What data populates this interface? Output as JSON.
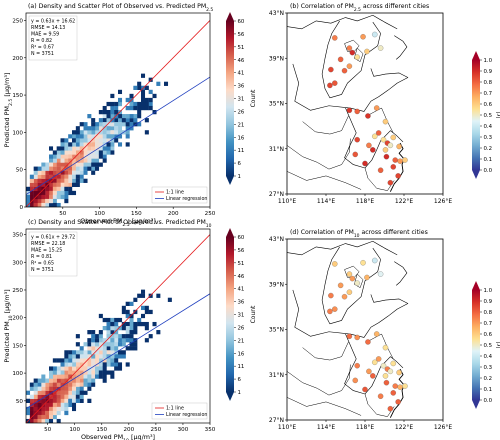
{
  "colors": {
    "one_to_one": "#e41a1c",
    "regression": "#1f3fbf",
    "density_scale": [
      "#08306b",
      "#2166ac",
      "#4393c3",
      "#92c5de",
      "#d1e5f0",
      "#fddbc7",
      "#f4a582",
      "#d6604d",
      "#b2182b",
      "#67001f"
    ],
    "corr_scale": [
      "#313695",
      "#4575b4",
      "#74add1",
      "#abd9e9",
      "#e0f3f8",
      "#fee090",
      "#fdae61",
      "#f46d43",
      "#d73027",
      "#a50026"
    ]
  },
  "chart_data": [
    {
      "type": "scatter",
      "panel": "a",
      "title": "(a) Density and Scatter Plot of Observed vs. Predicted PM",
      "title_sub": "2.5",
      "xlabel": "Observed PM",
      "xlabel_sub": "2.5",
      "xlabel_unit": " [μg/m³]",
      "ylabel": "Predicted PM",
      "ylabel_sub": "2.5",
      "ylabel_unit": " [μg/m³]",
      "xlim": [
        0,
        250
      ],
      "ylim": [
        0,
        260
      ],
      "xticks": [
        50,
        100,
        150,
        200,
        250
      ],
      "yticks": [
        0,
        50,
        100,
        150,
        200,
        250
      ],
      "stats": [
        "y = 0.63x + 16.62",
        "RMSE = 14.13",
        "MAE = 9.59",
        "R = 0.82",
        "R² = 0.67",
        "N = 3751"
      ],
      "regression": {
        "slope": 0.63,
        "intercept": 16.62
      },
      "legend": [
        "1:1 line",
        "Linear regression"
      ],
      "legend_position": "lower-right",
      "colorbar": {
        "label": "Count",
        "ticks": [
          1,
          6,
          11,
          16,
          21,
          26,
          31,
          36,
          41,
          46,
          51,
          56,
          60
        ]
      }
    },
    {
      "type": "scatter",
      "panel": "c",
      "title": "(c) Density and Scatter Plot of Observed vs. Predicted PM",
      "title_sub": "10",
      "xlabel": "Observed PM",
      "xlabel_sub": "10",
      "xlabel_unit": " [μg/m³]",
      "ylabel": "Predicted PM",
      "ylabel_sub": "10",
      "ylabel_unit": " [μg/m³]",
      "xlim": [
        10,
        350
      ],
      "ylim": [
        10,
        360
      ],
      "xticks": [
        50,
        100,
        150,
        200,
        250,
        300,
        350
      ],
      "yticks": [
        50,
        100,
        150,
        200,
        250,
        300,
        350
      ],
      "stats": [
        "y = 0.61x + 29.72",
        "RMSE = 22.18",
        "MAE = 15.25",
        "R = 0.81",
        "R² = 0.65",
        "N = 3751"
      ],
      "regression": {
        "slope": 0.61,
        "intercept": 29.72
      },
      "legend": [
        "1:1 line",
        "Linear regression"
      ],
      "legend_position": "lower-right",
      "colorbar": {
        "label": "Count",
        "ticks": [
          1,
          6,
          11,
          16,
          21,
          26,
          31,
          36,
          41,
          46,
          51,
          56,
          60
        ]
      }
    },
    {
      "type": "map",
      "panel": "b",
      "title": "(b) Correlation of PM",
      "title_sub": "2.5",
      "title_rest": " across different cities",
      "xticks": [
        "110°E",
        "114°E",
        "118°E",
        "122°E",
        "126°E"
      ],
      "yticks": [
        "43°N",
        "39°N",
        "35°N",
        "31°N",
        "27°N"
      ],
      "lon_range": [
        110,
        126
      ],
      "lat_range": [
        27,
        43
      ],
      "colorbar": {
        "label": "|r|",
        "ticks": [
          "0.0",
          "0.1",
          "0.2",
          "0.3",
          "0.4",
          "0.5",
          "0.6",
          "0.7",
          "0.8",
          "0.9",
          "1.0"
        ]
      },
      "points": [
        {
          "lon": 116.4,
          "lat": 39.9,
          "r": 0.75
        },
        {
          "lon": 117.2,
          "lat": 39.1,
          "r": 0.55
        },
        {
          "lon": 117.8,
          "lat": 40.9,
          "r": 0.7
        },
        {
          "lon": 118.2,
          "lat": 39.6,
          "r": 0.6
        },
        {
          "lon": 119.6,
          "lat": 39.9,
          "r": 0.5
        },
        {
          "lon": 115.5,
          "lat": 38.9,
          "r": 0.8
        },
        {
          "lon": 114.5,
          "lat": 38.0,
          "r": 0.85
        },
        {
          "lon": 116.7,
          "lat": 39.5,
          "r": 0.9
        },
        {
          "lon": 119.0,
          "lat": 41.1,
          "r": 0.4
        },
        {
          "lon": 114.9,
          "lat": 40.8,
          "r": 0.75
        },
        {
          "lon": 115.9,
          "lat": 37.9,
          "r": 0.8
        },
        {
          "lon": 114.4,
          "lat": 36.6,
          "r": 0.85
        },
        {
          "lon": 116.4,
          "lat": 38.3,
          "r": 0.7
        },
        {
          "lon": 114.9,
          "lat": 36.8,
          "r": 0.82
        },
        {
          "lon": 120.3,
          "lat": 31.5,
          "r": 0.85
        },
        {
          "lon": 120.6,
          "lat": 31.3,
          "r": 0.5
        },
        {
          "lon": 121.5,
          "lat": 31.2,
          "r": 0.65
        },
        {
          "lon": 119.0,
          "lat": 32.1,
          "r": 0.55
        },
        {
          "lon": 120.2,
          "lat": 30.3,
          "r": 0.9
        },
        {
          "lon": 121.6,
          "lat": 29.9,
          "r": 0.7
        },
        {
          "lon": 120.9,
          "lat": 32.0,
          "r": 0.6
        },
        {
          "lon": 119.4,
          "lat": 32.4,
          "r": 0.8
        },
        {
          "lon": 117.2,
          "lat": 31.8,
          "r": 0.85
        },
        {
          "lon": 118.4,
          "lat": 31.3,
          "r": 0.75
        },
        {
          "lon": 120.6,
          "lat": 28.0,
          "r": 0.85
        },
        {
          "lon": 119.6,
          "lat": 29.1,
          "r": 0.8
        },
        {
          "lon": 120.1,
          "lat": 30.9,
          "r": 0.6
        },
        {
          "lon": 118.8,
          "lat": 30.9,
          "r": 0.9
        },
        {
          "lon": 117.0,
          "lat": 30.5,
          "r": 0.82
        },
        {
          "lon": 119.9,
          "lat": 31.8,
          "r": 0.55
        },
        {
          "lon": 121.1,
          "lat": 30.0,
          "r": 0.8
        },
        {
          "lon": 120.9,
          "lat": 29.4,
          "r": 0.85
        },
        {
          "lon": 118.3,
          "lat": 33.9,
          "r": 0.88
        },
        {
          "lon": 117.2,
          "lat": 34.3,
          "r": 0.8
        },
        {
          "lon": 119.2,
          "lat": 34.6,
          "r": 0.7
        },
        {
          "lon": 120.1,
          "lat": 33.4,
          "r": 0.6
        },
        {
          "lon": 121.4,
          "lat": 28.6,
          "r": 0.85
        },
        {
          "lon": 122.1,
          "lat": 30.0,
          "r": 0.6
        },
        {
          "lon": 116.4,
          "lat": 34.4,
          "r": 0.88
        },
        {
          "lon": 118.0,
          "lat": 29.7,
          "r": 0.9
        }
      ]
    },
    {
      "type": "map",
      "panel": "d",
      "title": "(d) Correlation of PM",
      "title_sub": "10",
      "title_rest": " across different cities",
      "xticks": [
        "110°E",
        "114°E",
        "118°E",
        "122°E",
        "126°E"
      ],
      "yticks": [
        "43°N",
        "39°N",
        "35°N",
        "31°N",
        "27°N"
      ],
      "lon_range": [
        110,
        126
      ],
      "lat_range": [
        27,
        43
      ],
      "colorbar": {
        "label": "|r|",
        "ticks": [
          "0.0",
          "0.1",
          "0.2",
          "0.3",
          "0.4",
          "0.5",
          "0.6",
          "0.7",
          "0.8",
          "0.9",
          "1.0"
        ]
      },
      "points": [
        {
          "lon": 116.4,
          "lat": 39.9,
          "r": 0.6
        },
        {
          "lon": 117.2,
          "lat": 39.1,
          "r": 0.5
        },
        {
          "lon": 117.8,
          "lat": 40.9,
          "r": 0.55
        },
        {
          "lon": 118.2,
          "lat": 39.6,
          "r": 0.65
        },
        {
          "lon": 119.6,
          "lat": 39.9,
          "r": 0.45
        },
        {
          "lon": 115.5,
          "lat": 38.9,
          "r": 0.7
        },
        {
          "lon": 114.5,
          "lat": 38.0,
          "r": 0.75
        },
        {
          "lon": 116.7,
          "lat": 39.5,
          "r": 0.7
        },
        {
          "lon": 119.0,
          "lat": 41.1,
          "r": 0.4
        },
        {
          "lon": 114.9,
          "lat": 40.8,
          "r": 0.6
        },
        {
          "lon": 115.9,
          "lat": 37.9,
          "r": 0.7
        },
        {
          "lon": 114.4,
          "lat": 36.6,
          "r": 0.75
        },
        {
          "lon": 116.4,
          "lat": 38.3,
          "r": 0.6
        },
        {
          "lon": 114.9,
          "lat": 36.8,
          "r": 0.72
        },
        {
          "lon": 120.3,
          "lat": 31.5,
          "r": 0.75
        },
        {
          "lon": 120.6,
          "lat": 31.3,
          "r": 0.5
        },
        {
          "lon": 121.5,
          "lat": 31.2,
          "r": 0.6
        },
        {
          "lon": 119.0,
          "lat": 32.1,
          "r": 0.55
        },
        {
          "lon": 120.2,
          "lat": 30.3,
          "r": 0.8
        },
        {
          "lon": 121.6,
          "lat": 29.9,
          "r": 0.65
        },
        {
          "lon": 120.9,
          "lat": 32.0,
          "r": 0.55
        },
        {
          "lon": 119.4,
          "lat": 32.4,
          "r": 0.7
        },
        {
          "lon": 117.2,
          "lat": 31.8,
          "r": 0.75
        },
        {
          "lon": 118.4,
          "lat": 31.3,
          "r": 0.7
        },
        {
          "lon": 120.6,
          "lat": 28.0,
          "r": 0.8
        },
        {
          "lon": 119.6,
          "lat": 29.1,
          "r": 0.75
        },
        {
          "lon": 120.1,
          "lat": 30.9,
          "r": 0.55
        },
        {
          "lon": 118.8,
          "lat": 30.9,
          "r": 0.8
        },
        {
          "lon": 117.0,
          "lat": 30.5,
          "r": 0.72
        },
        {
          "lon": 119.9,
          "lat": 31.8,
          "r": 0.5
        },
        {
          "lon": 121.1,
          "lat": 30.0,
          "r": 0.75
        },
        {
          "lon": 120.9,
          "lat": 29.4,
          "r": 0.8
        },
        {
          "lon": 118.3,
          "lat": 33.9,
          "r": 0.78
        },
        {
          "lon": 117.2,
          "lat": 34.3,
          "r": 0.72
        },
        {
          "lon": 119.2,
          "lat": 34.6,
          "r": 0.65
        },
        {
          "lon": 120.1,
          "lat": 33.4,
          "r": 0.55
        },
        {
          "lon": 121.4,
          "lat": 28.6,
          "r": 0.8
        },
        {
          "lon": 122.1,
          "lat": 30.0,
          "r": 0.55
        },
        {
          "lon": 116.4,
          "lat": 34.4,
          "r": 0.78
        },
        {
          "lon": 118.0,
          "lat": 29.7,
          "r": 0.82
        }
      ]
    }
  ]
}
